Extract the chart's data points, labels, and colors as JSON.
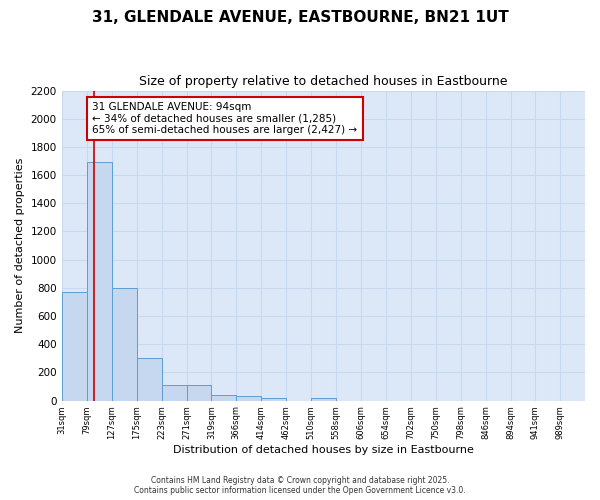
{
  "title1": "31, GLENDALE AVENUE, EASTBOURNE, BN21 1UT",
  "title2": "Size of property relative to detached houses in Eastbourne",
  "xlabel": "Distribution of detached houses by size in Eastbourne",
  "ylabel": "Number of detached properties",
  "bar_left_edges": [
    31,
    79,
    127,
    175,
    223,
    271,
    319,
    366,
    414,
    462,
    510,
    558,
    606,
    654,
    702,
    750,
    798,
    846,
    894,
    941
  ],
  "bar_widths": [
    48,
    48,
    48,
    48,
    48,
    48,
    47,
    48,
    48,
    48,
    48,
    48,
    48,
    48,
    48,
    48,
    48,
    48,
    47,
    48
  ],
  "bar_heights": [
    770,
    1695,
    800,
    300,
    110,
    110,
    40,
    35,
    20,
    0,
    20,
    0,
    0,
    0,
    0,
    0,
    0,
    0,
    0,
    0
  ],
  "bar_color": "#c5d8f0",
  "bar_edge_color": "#5a9fd4",
  "x_tick_labels": [
    "31sqm",
    "79sqm",
    "127sqm",
    "175sqm",
    "223sqm",
    "271sqm",
    "319sqm",
    "366sqm",
    "414sqm",
    "462sqm",
    "510sqm",
    "558sqm",
    "606sqm",
    "654sqm",
    "702sqm",
    "750sqm",
    "798sqm",
    "846sqm",
    "894sqm",
    "941sqm",
    "989sqm"
  ],
  "ylim": [
    0,
    2200
  ],
  "yticks": [
    0,
    200,
    400,
    600,
    800,
    1000,
    1200,
    1400,
    1600,
    1800,
    2000,
    2200
  ],
  "red_line_x": 94,
  "annotation_text": "31 GLENDALE AVENUE: 94sqm\n← 34% of detached houses are smaller (1,285)\n65% of semi-detached houses are larger (2,427) →",
  "annotation_box_color": "#ffffff",
  "annotation_box_edge_color": "#cc0000",
  "grid_color": "#c8d8ee",
  "bg_color": "#dce8f8",
  "fig_bg_color": "#ffffff",
  "footer1": "Contains HM Land Registry data © Crown copyright and database right 2025.",
  "footer2": "Contains public sector information licensed under the Open Government Licence v3.0."
}
